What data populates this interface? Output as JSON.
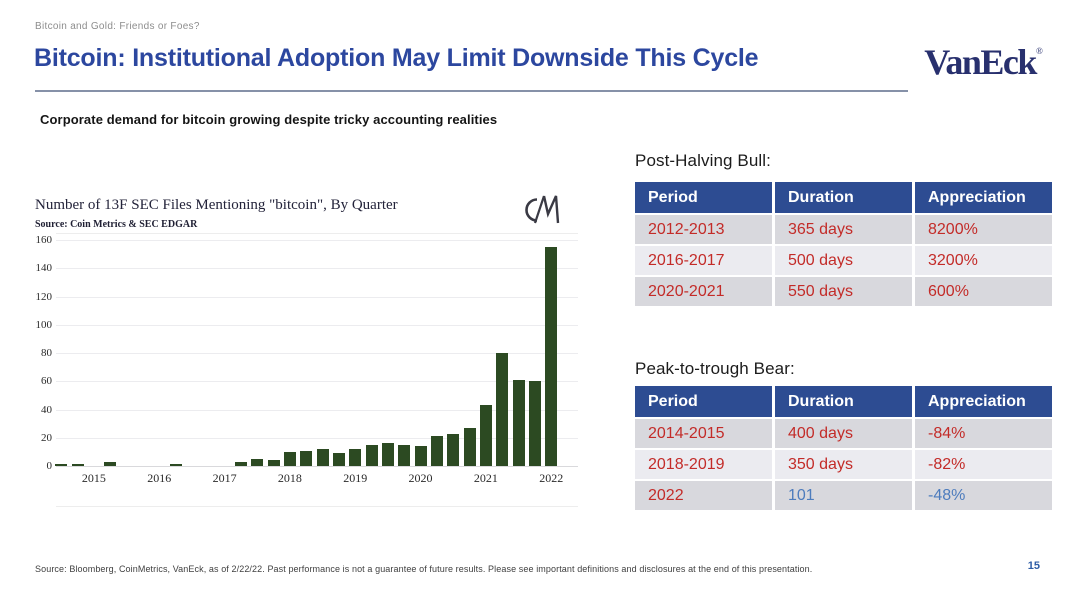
{
  "slide": {
    "eyebrow": "Bitcoin and Gold: Friends or Foes?",
    "title": "Bitcoin: Institutional Adoption May Limit Downside This Cycle",
    "subtitle": "Corporate demand for bitcoin growing despite tricky accounting realities",
    "logo_text": "VanEck",
    "logo_reg": "®",
    "footer": "Source: Bloomberg, CoinMetrics, VanEck, as of 2/22/22. Past performance is not a guarantee of future results. Please see important definitions and disclosures at the end of this presentation.",
    "page_number": "15"
  },
  "colors": {
    "title_blue": "#2c479f",
    "logo_navy": "#28306e",
    "table_header_blue": "#2d4c92",
    "value_red": "#c32b28",
    "value_blue": "#4d7cbd",
    "bar_green": "#2c4a22",
    "row_dark": "#d8d8dd",
    "row_light": "#ebebf0"
  },
  "chart_data": {
    "type": "bar",
    "title": "Number of 13F SEC Files Mentioning \"bitcoin\", By Quarter",
    "source": "Source: Coin Metrics & SEC EDGAR",
    "watermark": "CM",
    "xlabel": "",
    "ylabel": "",
    "ylim": [
      0,
      160
    ],
    "ytick_step": 20,
    "grid": true,
    "legend": false,
    "bar_color": "#2c4a22",
    "x_year_labels": [
      "2015",
      "2016",
      "2017",
      "2018",
      "2019",
      "2020",
      "2021",
      "2022"
    ],
    "points": [
      {
        "quarter": "2014 Q3",
        "value": 1
      },
      {
        "quarter": "2014 Q4",
        "value": 1
      },
      {
        "quarter": "2015 Q2",
        "value": 3
      },
      {
        "quarter": "2016 Q2",
        "value": 1
      },
      {
        "quarter": "2017 Q2",
        "value": 3
      },
      {
        "quarter": "2017 Q3",
        "value": 5
      },
      {
        "quarter": "2017 Q4",
        "value": 4
      },
      {
        "quarter": "2018 Q1",
        "value": 10
      },
      {
        "quarter": "2018 Q2",
        "value": 11
      },
      {
        "quarter": "2018 Q3",
        "value": 12
      },
      {
        "quarter": "2018 Q4",
        "value": 9
      },
      {
        "quarter": "2019 Q1",
        "value": 12
      },
      {
        "quarter": "2019 Q2",
        "value": 15
      },
      {
        "quarter": "2019 Q3",
        "value": 16
      },
      {
        "quarter": "2019 Q4",
        "value": 15
      },
      {
        "quarter": "2020 Q1",
        "value": 14
      },
      {
        "quarter": "2020 Q2",
        "value": 21
      },
      {
        "quarter": "2020 Q3",
        "value": 23
      },
      {
        "quarter": "2020 Q4",
        "value": 27
      },
      {
        "quarter": "2021 Q1",
        "value": 43
      },
      {
        "quarter": "2021 Q2",
        "value": 80
      },
      {
        "quarter": "2021 Q3",
        "value": 61
      },
      {
        "quarter": "2021 Q4",
        "value": 60
      },
      {
        "quarter": "2022 Q1",
        "value": 155
      }
    ]
  },
  "tables": [
    {
      "caption": "Post-Halving Bull:",
      "headers": [
        "Period",
        "Duration",
        "Appreciation"
      ],
      "rows": [
        {
          "cells": [
            {
              "text": "2012-2013",
              "style": "red"
            },
            {
              "text": "365 days",
              "style": "red"
            },
            {
              "text": "8200%",
              "style": "red"
            }
          ]
        },
        {
          "cells": [
            {
              "text": "2016-2017",
              "style": "red"
            },
            {
              "text": "500 days",
              "style": "red"
            },
            {
              "text": "3200%",
              "style": "red"
            }
          ]
        },
        {
          "cells": [
            {
              "text": "2020-2021",
              "style": "red"
            },
            {
              "text": "550 days",
              "style": "red"
            },
            {
              "text": "600%",
              "style": "red"
            }
          ]
        }
      ]
    },
    {
      "caption": "Peak-to-trough Bear:",
      "headers": [
        "Period",
        "Duration",
        "Appreciation"
      ],
      "rows": [
        {
          "cells": [
            {
              "text": "2014-2015",
              "style": "red"
            },
            {
              "text": "400 days",
              "style": "red"
            },
            {
              "text": "-84%",
              "style": "red"
            }
          ]
        },
        {
          "cells": [
            {
              "text": "2018-2019",
              "style": "red"
            },
            {
              "text": "350 days",
              "style": "red"
            },
            {
              "text": "-82%",
              "style": "red"
            }
          ]
        },
        {
          "cells": [
            {
              "text": "2022",
              "style": "red"
            },
            {
              "text": "101",
              "style": "blue"
            },
            {
              "text": "-48%",
              "style": "blue"
            }
          ]
        }
      ]
    }
  ]
}
